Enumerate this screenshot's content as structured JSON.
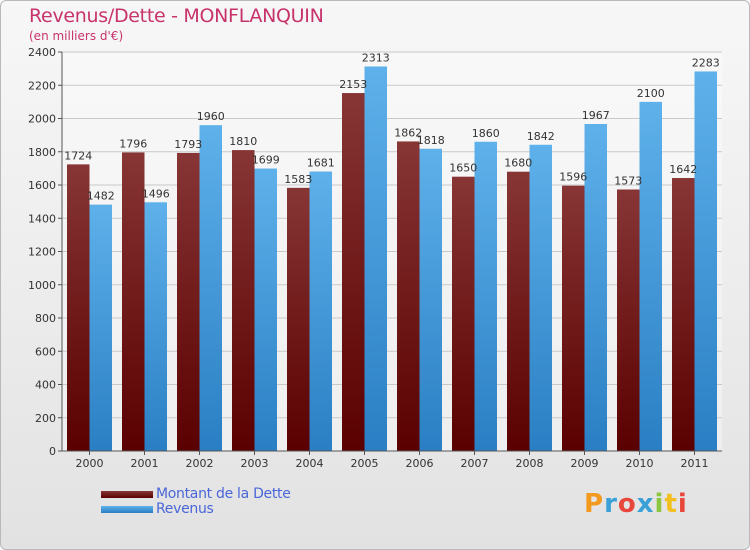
{
  "title": "Revenus/Dette - MONFLANQUIN",
  "subtitle": "(en milliers d'€)",
  "chart_data": {
    "type": "bar",
    "title": "Revenus/Dette - MONFLANQUIN",
    "ylabel": "(en milliers d'€)",
    "xlabel": "",
    "categories": [
      "2000",
      "2001",
      "2002",
      "2003",
      "2004",
      "2005",
      "2006",
      "2007",
      "2008",
      "2009",
      "2010",
      "2011"
    ],
    "series": [
      {
        "name": "Montant de la Dette",
        "color": "#7a1a1a",
        "values": [
          1724,
          1796,
          1793,
          1810,
          1583,
          2153,
          1862,
          1650,
          1680,
          1596,
          1573,
          1642
        ]
      },
      {
        "name": "Revenus",
        "color": "#3c95dd",
        "values": [
          1482,
          1496,
          1960,
          1699,
          1681,
          2313,
          1818,
          1860,
          1842,
          1967,
          2100,
          2283
        ]
      }
    ],
    "ylim": [
      0,
      2400
    ],
    "yticks": [
      0,
      200,
      400,
      600,
      800,
      1000,
      1200,
      1400,
      1600,
      1800,
      2000,
      2200,
      2400
    ],
    "grid": true,
    "legend_position": "bottom-left"
  },
  "legend": {
    "dette_label": "Montant de la Dette",
    "revenus_label": "Revenus"
  },
  "logo": {
    "letters": [
      "P",
      "r",
      "o",
      "x",
      "i",
      "t",
      "i"
    ],
    "colors": [
      "#f39a1e",
      "#3aa0d8",
      "#e8483b",
      "#3aa0d8",
      "#8cc63e",
      "#f2c01e",
      "#e8483b"
    ]
  }
}
